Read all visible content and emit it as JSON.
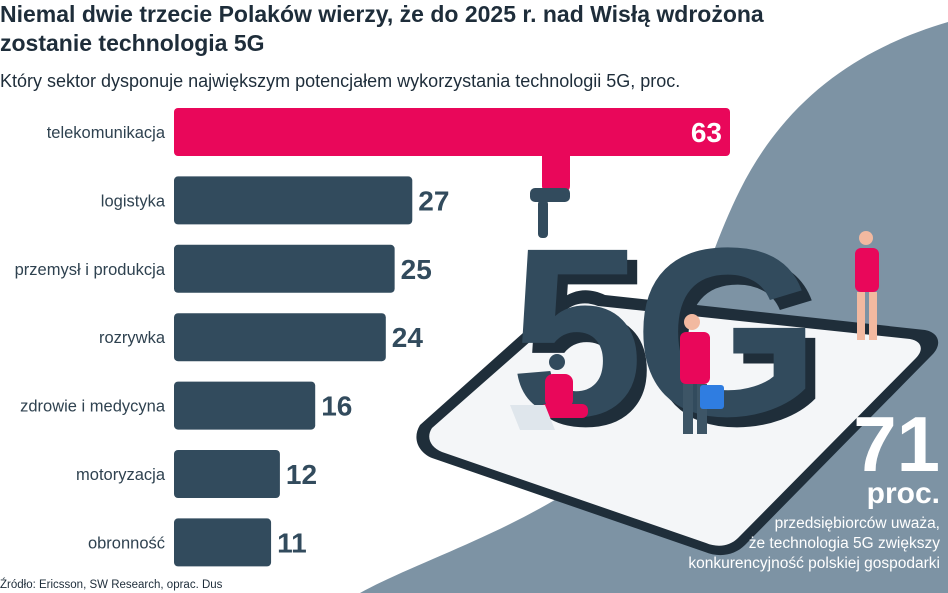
{
  "title": {
    "line1": "Niemal dwie trzecie Polaków wierzy, że do 2025 r. nad Wisłą wdrożona",
    "line2": "zostanie technologia 5G"
  },
  "colors": {
    "highlight_bar": "#e9075a",
    "bar": "#324b5d",
    "background_shape": "#7d93a4",
    "label": "#2f4250"
  },
  "chart_data": {
    "type": "bar",
    "orientation": "horizontal",
    "title": "Który sektor dysponuje największym potencjałem wykorzystania technologii 5G, proc.",
    "categories": [
      "telekomunikacja",
      "logistyka",
      "przemysł i produkcja",
      "rozrywka",
      "zdrowie i medycyna",
      "motoryzacja",
      "obronność"
    ],
    "values": [
      63,
      27,
      25,
      24,
      16,
      12,
      11
    ],
    "highlight_index": 0,
    "xlim": [
      0,
      63
    ],
    "grid": false,
    "legend": "none"
  },
  "stat": {
    "number": "71",
    "unit": "proc.",
    "line1": "przedsiębiorców uważa,",
    "line2": "że technologia 5G zwiększy",
    "line3": "konkurencyjność polskiej gospodarki"
  },
  "illustration": {
    "icon": "smartphone-5g-illustration-icon",
    "text": "5G"
  },
  "source": "Źródło: Ericsson, SW Research, oprac. Dus"
}
